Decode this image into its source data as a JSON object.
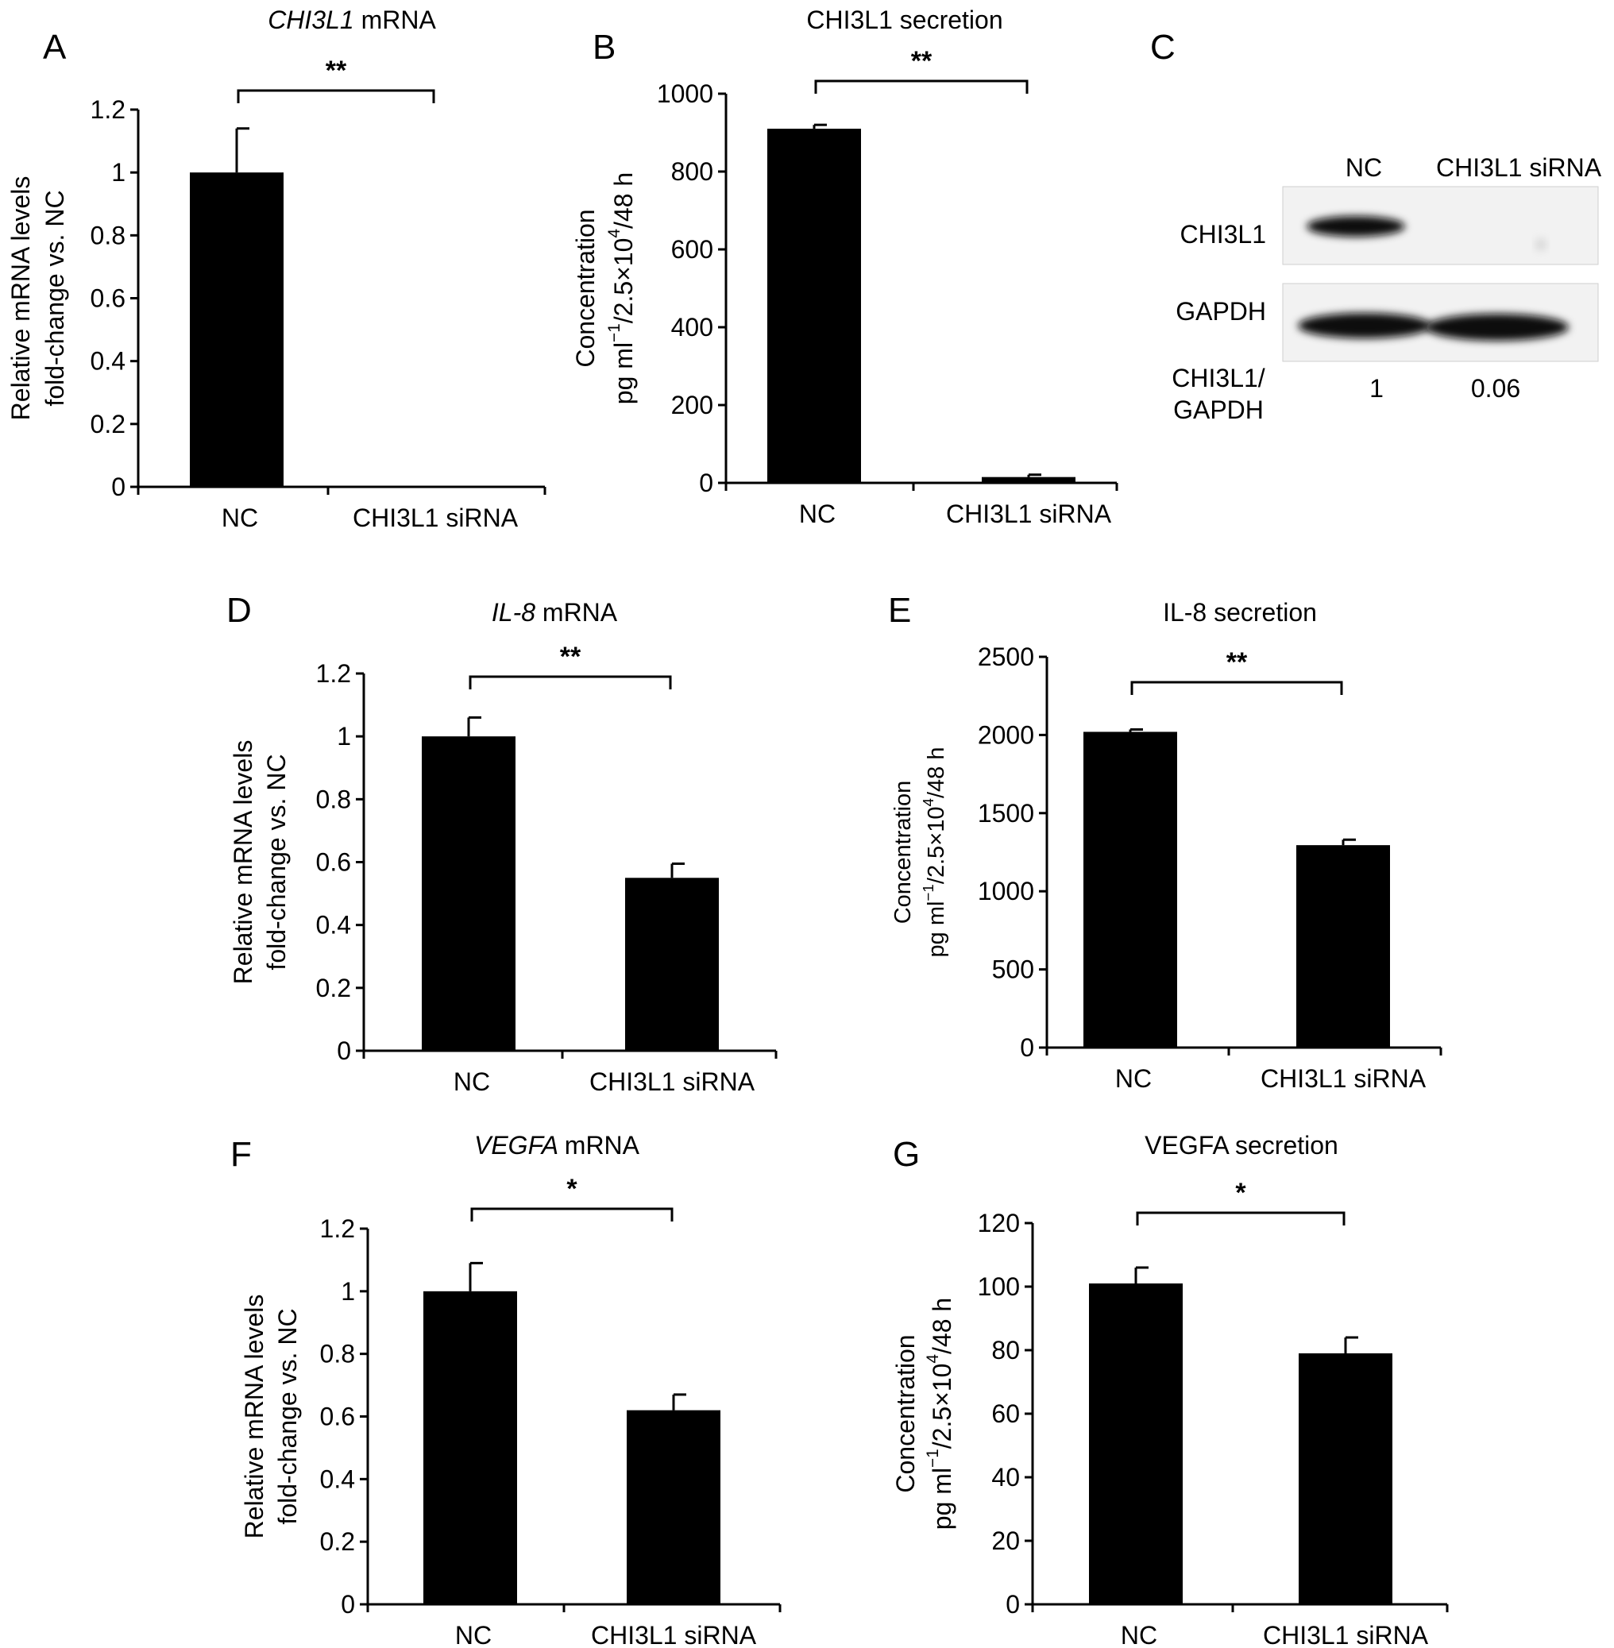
{
  "chart_data": [
    {
      "panel_letter": "A",
      "type": "bar",
      "title": "mRNA",
      "title_italic": "CHI3L1",
      "ylabel_lines": [
        "Relative mRNA levels",
        "fold-change vs. NC"
      ],
      "categories": [
        "NC",
        "CHI3L1 siRNA"
      ],
      "values": [
        1.0,
        0.0
      ],
      "errors": [
        0.14,
        0.0
      ],
      "ylim": [
        0,
        1.2
      ],
      "yticks": [
        0,
        0.2,
        0.4,
        0.6,
        0.8,
        1,
        1.2
      ],
      "ytick_labels": [
        "0",
        "0.2",
        "0.4",
        "0.6",
        "0.8",
        "1",
        "1.2"
      ],
      "significance": "**"
    },
    {
      "panel_letter": "B",
      "type": "bar",
      "title": "CHI3L1 secretion",
      "ylabel_lines": [
        "Concentration",
        "pg ml⁻¹/2.5×10⁴/48 h"
      ],
      "categories": [
        "NC",
        "CHI3L1 siRNA"
      ],
      "values": [
        910,
        15
      ],
      "errors": [
        10,
        6
      ],
      "ylim": [
        0,
        1000
      ],
      "yticks": [
        0,
        200,
        400,
        600,
        800,
        1000
      ],
      "ytick_labels": [
        "0",
        "200",
        "400",
        "600",
        "800",
        "1000"
      ],
      "significance": "**"
    },
    {
      "panel_letter": "D",
      "type": "bar",
      "title": "mRNA",
      "title_italic": "IL-8",
      "ylabel_lines": [
        "Relative mRNA levels",
        "fold-change vs. NC"
      ],
      "categories": [
        "NC",
        "CHI3L1 siRNA"
      ],
      "values": [
        1.0,
        0.55
      ],
      "errors": [
        0.06,
        0.045
      ],
      "ylim": [
        0,
        1.2
      ],
      "yticks": [
        0,
        0.2,
        0.4,
        0.6,
        0.8,
        1,
        1.2
      ],
      "ytick_labels": [
        "0",
        "0.2",
        "0.4",
        "0.6",
        "0.8",
        "1",
        "1.2"
      ],
      "significance": "**"
    },
    {
      "panel_letter": "E",
      "type": "bar",
      "title": "IL-8 secretion",
      "ylabel_lines": [
        "Concentration",
        "pg ml⁻¹/2.5×10⁴/48 h"
      ],
      "categories": [
        "NC",
        "CHI3L1 siRNA"
      ],
      "values": [
        2020,
        1295
      ],
      "errors": [
        15,
        35
      ],
      "ylim": [
        0,
        2500
      ],
      "yticks": [
        0,
        500,
        1000,
        1500,
        2000,
        2500
      ],
      "ytick_labels": [
        "0",
        "500",
        "1000",
        "1500",
        "2000",
        "2500"
      ],
      "significance": "**"
    },
    {
      "panel_letter": "F",
      "type": "bar",
      "title": "mRNA",
      "title_italic": "VEGFA",
      "ylabel_lines": [
        "Relative mRNA levels",
        "fold-change vs. NC"
      ],
      "categories": [
        "NC",
        "CHI3L1 siRNA"
      ],
      "values": [
        1.0,
        0.62
      ],
      "errors": [
        0.09,
        0.05
      ],
      "ylim": [
        0,
        1.2
      ],
      "yticks": [
        0,
        0.2,
        0.4,
        0.6,
        0.8,
        1,
        1.2
      ],
      "ytick_labels": [
        "0",
        "0.2",
        "0.4",
        "0.6",
        "0.8",
        "1",
        "1.2"
      ],
      "significance": "*"
    },
    {
      "panel_letter": "G",
      "type": "bar",
      "title": "VEGFA secretion",
      "ylabel_lines": [
        "Concentration",
        "pg ml⁻¹/2.5×10⁴/48 h"
      ],
      "categories": [
        "NC",
        "CHI3L1 siRNA"
      ],
      "values": [
        101,
        79
      ],
      "errors": [
        5,
        5
      ],
      "ylim": [
        0,
        120
      ],
      "yticks": [
        0,
        20,
        40,
        60,
        80,
        100,
        120
      ],
      "ytick_labels": [
        "0",
        "20",
        "40",
        "60",
        "80",
        "100",
        "120"
      ],
      "significance": "*"
    }
  ],
  "blot": {
    "panel_letter": "C",
    "lanes": [
      "NC",
      "CHI3L1 siRNA"
    ],
    "rows": [
      "CHI3L1",
      "GAPDH"
    ],
    "ratio_label_lines": [
      "CHI3L1/",
      "GAPDH"
    ],
    "ratios": [
      "1",
      "0.06"
    ]
  }
}
